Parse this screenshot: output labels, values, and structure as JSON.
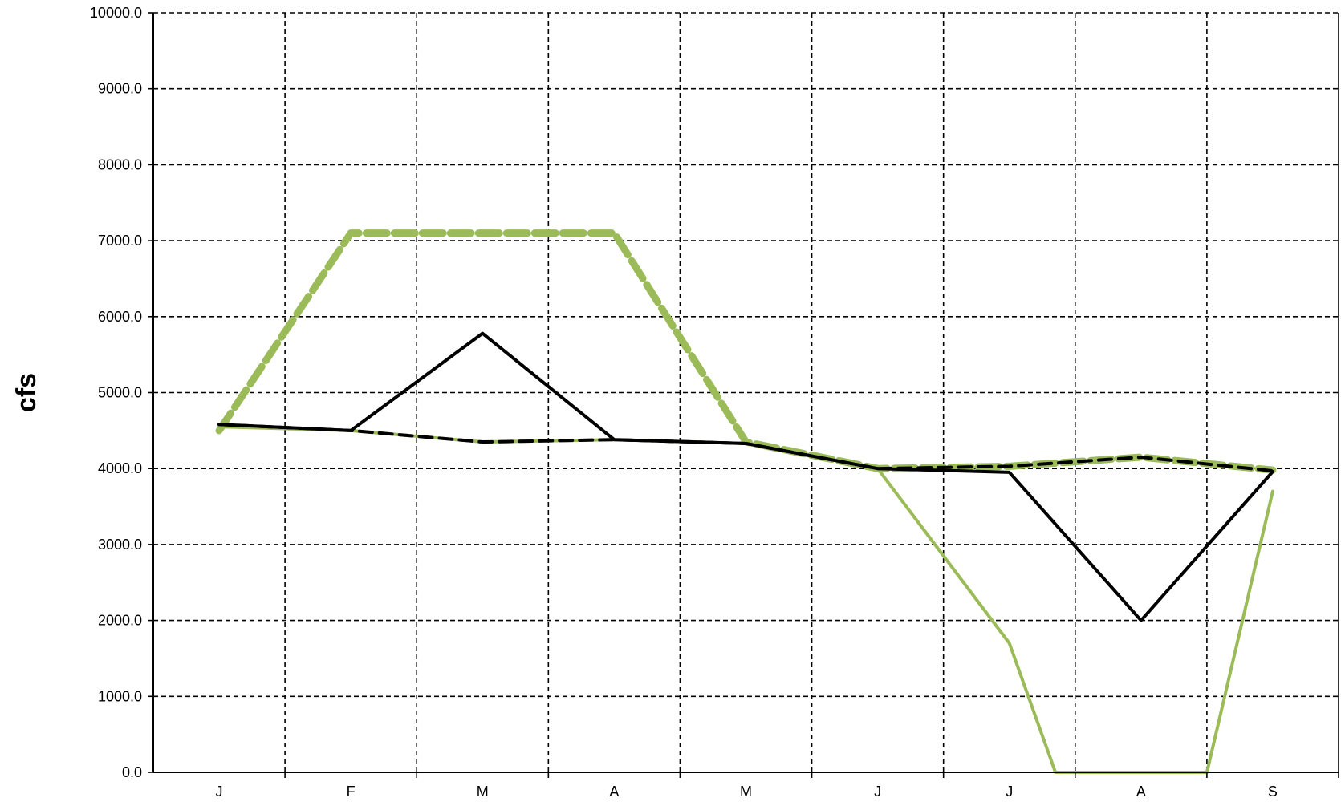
{
  "chart_data": {
    "type": "line",
    "title": "",
    "xlabel": "",
    "ylabel": "cfs",
    "categories": [
      "J",
      "F",
      "M",
      "A",
      "M",
      "J",
      "J",
      "A",
      "S"
    ],
    "ylim": [
      0,
      10000
    ],
    "yticks": [
      "0.0",
      "1000.0",
      "2000.0",
      "3000.0",
      "4000.0",
      "5000.0",
      "6000.0",
      "7000.0",
      "8000.0",
      "9000.0",
      "10000.0"
    ],
    "grid": true,
    "grid_style": "dashed",
    "legend": "none",
    "series": [
      {
        "color": "#9bbb59",
        "style": "thick-dashed",
        "points": [
          [
            0,
            4500
          ],
          [
            1,
            7100
          ],
          [
            2,
            7100
          ],
          [
            3,
            7100
          ],
          [
            4,
            4350
          ],
          [
            5,
            4000
          ],
          [
            6,
            4030
          ],
          [
            7,
            4150
          ],
          [
            8,
            3980
          ]
        ]
      },
      {
        "color": "#9bbb59",
        "style": "solid",
        "points": [
          [
            0,
            4550
          ],
          [
            1,
            4500
          ],
          [
            2,
            4350
          ],
          [
            3,
            4380
          ],
          [
            4,
            4330
          ],
          [
            5,
            4000
          ],
          [
            6,
            1700
          ],
          [
            6.35,
            0
          ],
          [
            7.5,
            0
          ],
          [
            8,
            3700
          ]
        ]
      },
      {
        "color": "#000000",
        "style": "dashed",
        "points": [
          [
            0,
            4580
          ],
          [
            1,
            4500
          ],
          [
            2,
            4350
          ],
          [
            3,
            4380
          ],
          [
            4,
            4330
          ],
          [
            5,
            4000
          ],
          [
            6,
            4030
          ],
          [
            7,
            4150
          ],
          [
            8,
            3970
          ]
        ]
      },
      {
        "color": "#000000",
        "style": "solid",
        "points": [
          [
            0,
            4580
          ],
          [
            1,
            4500
          ],
          [
            2,
            5780
          ],
          [
            3,
            4380
          ],
          [
            4,
            4330
          ],
          [
            5,
            4000
          ],
          [
            6,
            3950
          ],
          [
            7,
            2000
          ],
          [
            8,
            3960
          ]
        ]
      }
    ]
  }
}
